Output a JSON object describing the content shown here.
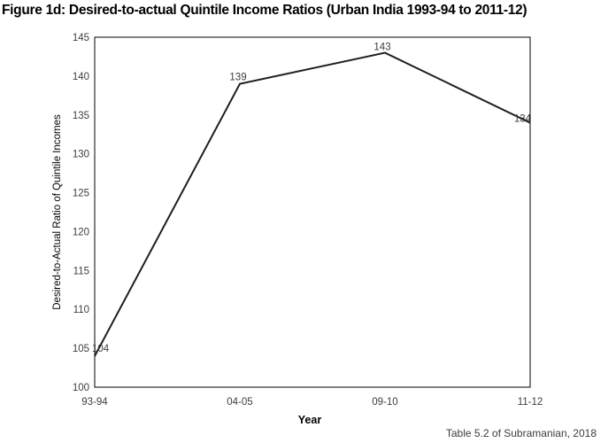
{
  "title": "Figure 1d: Desired-to-actual Quintile Income Ratios (Urban India 1993-94 to 2011-12)",
  "caption": "Table 5.2 of Subramanian, 2018",
  "chart_data": {
    "type": "line",
    "categories": [
      "93-94",
      "04-05",
      "09-10",
      "11-12"
    ],
    "values": [
      104,
      139,
      143,
      134
    ],
    "data_labels": [
      "104",
      "139",
      "143",
      "134"
    ],
    "title": "Figure 1d: Desired-to-actual Quintile Income Ratios (Urban India 1993-94 to 2011-12)",
    "xlabel": "Year",
    "ylabel": "Desired-to-Actual Ratio of Quintile Incomes",
    "ylim": [
      100,
      145
    ],
    "ytick_step": 5,
    "yticks": [
      100,
      105,
      110,
      115,
      120,
      125,
      130,
      135,
      140,
      145
    ],
    "grid": false,
    "legend": "none",
    "colors": {
      "line": "#1f1f1f",
      "plot_border": "#000000",
      "tick_text": "#3d3d3d",
      "axis_title_text": "#000000",
      "data_label_text": "#3d3d3d",
      "background": "#ffffff"
    }
  }
}
